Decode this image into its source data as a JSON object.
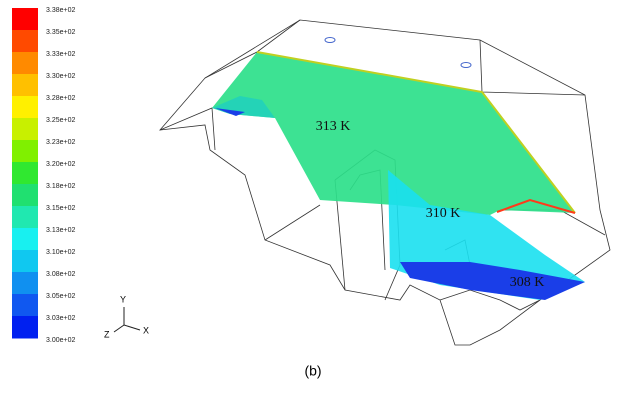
{
  "colorbar": {
    "labels": [
      "3.38e+02",
      "3.35e+02",
      "3.33e+02",
      "3.30e+02",
      "3.28e+02",
      "3.25e+02",
      "3.23e+02",
      "3.20e+02",
      "3.18e+02",
      "3.15e+02",
      "3.13e+02",
      "3.10e+02",
      "3.08e+02",
      "3.05e+02",
      "3.03e+02",
      "3.00e+02"
    ]
  },
  "annotations": [
    "313 K",
    "310 K",
    "308 K"
  ],
  "axes": {
    "y": "Y",
    "z": "Z",
    "x": "X"
  },
  "caption": "(b)"
}
